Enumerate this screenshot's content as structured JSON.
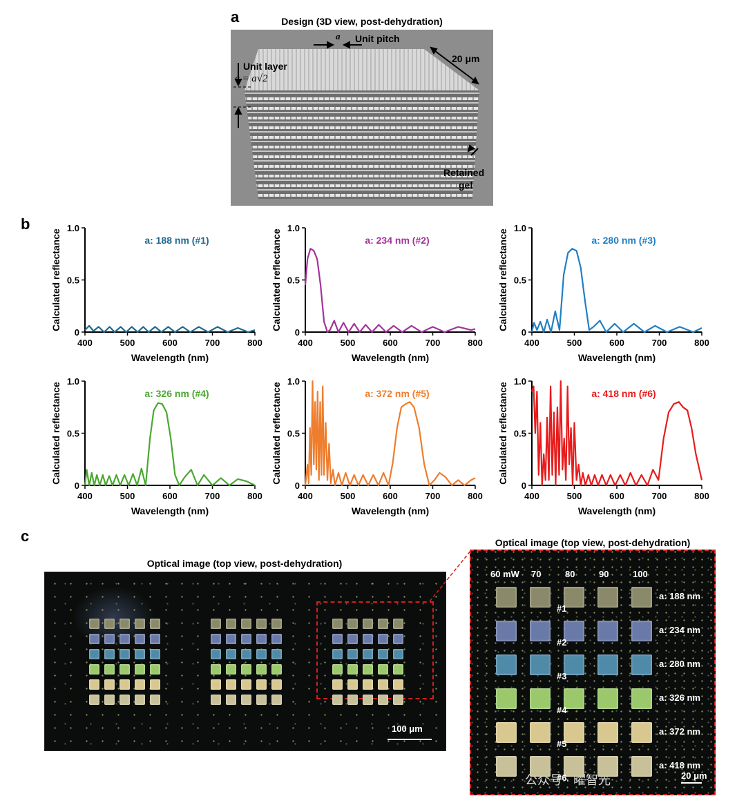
{
  "panel_a": {
    "letter": "a",
    "title": "Design (3D view, post-dehydration)",
    "label_a": "a",
    "unit_pitch": "Unit pitch",
    "size": "20 μm",
    "unit_layer": "Unit layer",
    "c_formula": "c = a√2",
    "retained_gel_1": "Retained",
    "retained_gel_2": "gel"
  },
  "panel_b": {
    "letter": "b"
  },
  "chart_data": [
    {
      "type": "line",
      "title": "a: 188 nm (#1)",
      "color": "#1f6a8f",
      "xlabel": "Wavelength (nm)",
      "ylabel": "Calculated reflectance",
      "xlim": [
        400,
        800
      ],
      "ylim": [
        0,
        1
      ],
      "xticks": [
        "400",
        "500",
        "600",
        "700",
        "800"
      ],
      "yticks": [
        "0",
        "0.5",
        "1.0"
      ],
      "x": [
        400,
        410,
        420,
        432,
        445,
        458,
        470,
        484,
        497,
        510,
        524,
        537,
        550,
        565,
        580,
        596,
        612,
        630,
        648,
        668,
        690,
        712,
        736,
        760,
        784,
        800
      ],
      "y": [
        0.02,
        0.06,
        0.01,
        0.05,
        0.0,
        0.05,
        0.0,
        0.05,
        0.0,
        0.05,
        0.0,
        0.05,
        0.0,
        0.05,
        0.0,
        0.05,
        0.0,
        0.05,
        0.0,
        0.05,
        0.0,
        0.05,
        0.0,
        0.04,
        0.0,
        0.02
      ]
    },
    {
      "type": "line",
      "title": "a: 234 nm (#2)",
      "color": "#a3339c",
      "xlabel": "Wavelength (nm)",
      "ylabel": "Calculated reflectance",
      "xlim": [
        400,
        800
      ],
      "ylim": [
        0,
        1
      ],
      "xticks": [
        "400",
        "500",
        "600",
        "700",
        "800"
      ],
      "yticks": [
        "0",
        "0.5",
        "1.0"
      ],
      "x": [
        400,
        405,
        412,
        420,
        428,
        436,
        444,
        452,
        458,
        468,
        478,
        490,
        502,
        515,
        528,
        542,
        557,
        573,
        590,
        608,
        628,
        650,
        674,
        700,
        728,
        760,
        790,
        800
      ],
      "y": [
        0.45,
        0.7,
        0.8,
        0.78,
        0.7,
        0.45,
        0.1,
        0.0,
        0.02,
        0.11,
        0.0,
        0.09,
        0.0,
        0.08,
        0.0,
        0.07,
        0.0,
        0.07,
        0.0,
        0.06,
        0.0,
        0.06,
        0.0,
        0.05,
        0.0,
        0.05,
        0.02,
        0.03
      ]
    },
    {
      "type": "line",
      "title": "a: 280 nm (#3)",
      "color": "#1f7fc4",
      "xlabel": "Wavelength (nm)",
      "ylabel": "Calculated reflectance",
      "xlim": [
        400,
        800
      ],
      "ylim": [
        0,
        1
      ],
      "xticks": [
        "400",
        "500",
        "600",
        "700",
        "800"
      ],
      "yticks": [
        "0",
        "0.5",
        "1.0"
      ],
      "x": [
        400,
        405,
        412,
        420,
        428,
        436,
        445,
        455,
        465,
        475,
        485,
        495,
        505,
        515,
        525,
        535,
        545,
        560,
        575,
        595,
        615,
        640,
        665,
        690,
        718,
        748,
        780,
        800
      ],
      "y": [
        0.0,
        0.09,
        0.02,
        0.1,
        0.0,
        0.12,
        0.0,
        0.2,
        0.02,
        0.55,
        0.76,
        0.8,
        0.78,
        0.62,
        0.3,
        0.02,
        0.05,
        0.11,
        0.0,
        0.08,
        0.0,
        0.08,
        0.0,
        0.06,
        0.0,
        0.05,
        0.0,
        0.04
      ]
    },
    {
      "type": "line",
      "title": "a: 326 nm (#4)",
      "color": "#4aa832",
      "xlabel": "Wavelength (nm)",
      "ylabel": "Calculated reflectance",
      "xlim": [
        400,
        800
      ],
      "ylim": [
        0,
        1
      ],
      "xticks": [
        "400",
        "500",
        "600",
        "700",
        "800"
      ],
      "yticks": [
        "0",
        "0.5",
        "1.0"
      ],
      "x": [
        400,
        404,
        410,
        416,
        422,
        428,
        435,
        442,
        449,
        457,
        465,
        474,
        483,
        493,
        503,
        513,
        523,
        533,
        543,
        553,
        562,
        572,
        582,
        592,
        602,
        612,
        622,
        635,
        650,
        665,
        680,
        700,
        720,
        740,
        760,
        780,
        800
      ],
      "y": [
        0.0,
        0.15,
        0.0,
        0.12,
        0.0,
        0.1,
        0.0,
        0.1,
        0.0,
        0.09,
        0.0,
        0.1,
        0.0,
        0.1,
        0.0,
        0.11,
        0.0,
        0.16,
        0.0,
        0.45,
        0.72,
        0.79,
        0.78,
        0.7,
        0.45,
        0.1,
        0.0,
        0.08,
        0.15,
        0.0,
        0.1,
        0.0,
        0.07,
        0.0,
        0.06,
        0.04,
        0.0
      ]
    },
    {
      "type": "line",
      "title": "a: 372 nm (#5)",
      "color": "#ee7d2d",
      "xlabel": "Wavelength (nm)",
      "ylabel": "Calculated reflectance",
      "xlim": [
        400,
        800
      ],
      "ylim": [
        0,
        1
      ],
      "xticks": [
        "400",
        "500",
        "600",
        "700",
        "800"
      ],
      "yticks": [
        "0",
        "0.5",
        "1.0"
      ],
      "x": [
        400,
        405,
        408,
        411,
        414,
        417,
        420,
        423,
        426,
        429,
        432,
        435,
        438,
        441,
        444,
        448,
        452,
        456,
        460,
        465,
        470,
        478,
        486,
        495,
        505,
        515,
        525,
        536,
        548,
        560,
        572,
        584,
        596,
        606,
        616,
        626,
        636,
        646,
        656,
        668,
        680,
        692,
        704,
        716,
        730,
        745,
        760,
        775,
        790,
        800
      ],
      "y": [
        0.0,
        0.2,
        0.02,
        0.55,
        0.1,
        1.0,
        0.2,
        0.8,
        0.15,
        0.9,
        0.05,
        0.8,
        0.1,
        0.95,
        0.1,
        0.6,
        0.05,
        0.4,
        0.02,
        0.15,
        0.0,
        0.12,
        0.0,
        0.12,
        0.0,
        0.1,
        0.0,
        0.1,
        0.0,
        0.1,
        0.0,
        0.12,
        0.0,
        0.22,
        0.55,
        0.75,
        0.78,
        0.8,
        0.75,
        0.55,
        0.2,
        0.0,
        0.05,
        0.12,
        0.08,
        0.0,
        0.05,
        0.0,
        0.05,
        0.07
      ]
    },
    {
      "type": "line",
      "title": "a: 418 nm (#6)",
      "color": "#e81c1c",
      "xlabel": "Wavelength (nm)",
      "ylabel": "Calculated reflectance",
      "xlim": [
        400,
        800
      ],
      "ylim": [
        0,
        1
      ],
      "xticks": [
        "400",
        "500",
        "600",
        "700",
        "800"
      ],
      "yticks": [
        "0",
        "0.5",
        "1.0"
      ],
      "x": [
        400,
        404,
        408,
        412,
        416,
        420,
        424,
        428,
        432,
        436,
        440,
        444,
        448,
        452,
        456,
        460,
        464,
        468,
        472,
        476,
        480,
        484,
        488,
        492,
        496,
        500,
        505,
        510,
        515,
        520,
        526,
        533,
        540,
        548,
        556,
        565,
        575,
        585,
        596,
        608,
        620,
        632,
        645,
        658,
        672,
        685,
        698,
        710,
        722,
        734,
        746,
        756,
        766,
        776,
        786,
        800
      ],
      "y": [
        0.9,
        0.95,
        0.5,
        0.9,
        0.1,
        0.6,
        0.0,
        0.3,
        0.05,
        0.65,
        0.05,
        0.95,
        0.1,
        0.7,
        0.0,
        0.75,
        0.1,
        1.0,
        0.15,
        0.45,
        0.05,
        0.95,
        0.2,
        0.55,
        0.0,
        0.6,
        0.05,
        0.2,
        0.0,
        0.12,
        0.0,
        0.1,
        0.0,
        0.1,
        0.0,
        0.1,
        0.0,
        0.1,
        0.0,
        0.1,
        0.0,
        0.12,
        0.0,
        0.1,
        0.0,
        0.15,
        0.05,
        0.45,
        0.7,
        0.78,
        0.8,
        0.75,
        0.72,
        0.55,
        0.3,
        0.05
      ]
    }
  ],
  "panel_c": {
    "letter": "c",
    "caption_left": "Optical image (top view, post-dehydration)",
    "scalebar_left": "100 μm",
    "caption_right": "Optical image (top view, post-dehydration)",
    "powers": [
      "60 mW",
      "70",
      "80",
      "90",
      "100"
    ],
    "pitches": [
      "a: 188 nm",
      "a: 234 nm",
      "a: 280 nm",
      "a: 326 nm",
      "a: 372 nm",
      "a: 418 nm"
    ],
    "ids": [
      "#1",
      "#2",
      "#3",
      "#4",
      "#5",
      "#6"
    ],
    "scalebar_right": "20 μm",
    "row_colors": [
      "#8a8a6a",
      "#6a7aa8",
      "#4f8aa8",
      "#9ac86a",
      "#d8c890",
      "#c8c098"
    ],
    "watermark": "公众号 · 曜智光"
  }
}
